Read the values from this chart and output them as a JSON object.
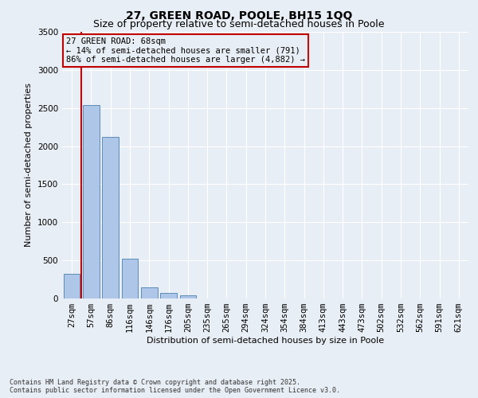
{
  "title_line1": "27, GREEN ROAD, POOLE, BH15 1QQ",
  "title_line2": "Size of property relative to semi-detached houses in Poole",
  "xlabel": "Distribution of semi-detached houses by size in Poole",
  "ylabel": "Number of semi-detached properties",
  "categories": [
    "27sqm",
    "57sqm",
    "86sqm",
    "116sqm",
    "146sqm",
    "176sqm",
    "205sqm",
    "235sqm",
    "265sqm",
    "294sqm",
    "324sqm",
    "354sqm",
    "384sqm",
    "413sqm",
    "443sqm",
    "473sqm",
    "502sqm",
    "532sqm",
    "562sqm",
    "591sqm",
    "621sqm"
  ],
  "values": [
    320,
    2540,
    2120,
    520,
    145,
    70,
    40,
    0,
    0,
    0,
    0,
    0,
    0,
    0,
    0,
    0,
    0,
    0,
    0,
    0,
    0
  ],
  "bar_color": "#aec6e8",
  "bar_edge_color": "#5b8db8",
  "vline_position": 0.5,
  "vline_color": "#c00000",
  "annotation_text": "27 GREEN ROAD: 68sqm\n← 14% of semi-detached houses are smaller (791)\n86% of semi-detached houses are larger (4,882) →",
  "annotation_box_edgecolor": "#c00000",
  "annotation_fontsize": 7.5,
  "ylim": [
    0,
    3500
  ],
  "yticks": [
    0,
    500,
    1000,
    1500,
    2000,
    2500,
    3000,
    3500
  ],
  "bg_color": "#e8eef5",
  "grid_color": "#ffffff",
  "footer_line1": "Contains HM Land Registry data © Crown copyright and database right 2025.",
  "footer_line2": "Contains public sector information licensed under the Open Government Licence v3.0.",
  "title_fontsize": 10,
  "subtitle_fontsize": 9,
  "axis_label_fontsize": 8,
  "tick_fontsize": 7.5,
  "footer_fontsize": 6
}
